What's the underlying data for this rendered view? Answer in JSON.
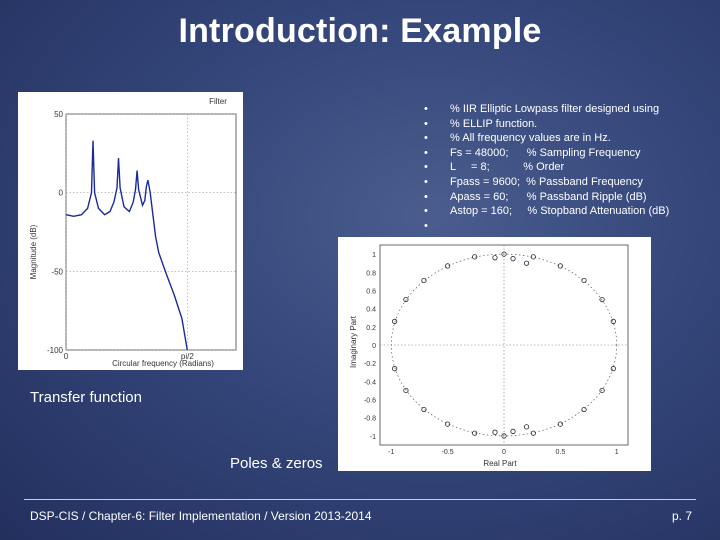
{
  "slide": {
    "title": "Introduction: Example",
    "code_lines": [
      "% IIR Elliptic Lowpass filter designed using",
      "% ELLIP function.",
      "% All frequency values are in Hz.",
      "Fs = 48000;      % Sampling Frequency",
      "L     = 8;           % Order",
      "Fpass = 9600;  % Passband Frequency",
      "Apass = 60;      % Passband Ripple (dB)",
      "Astop = 160;     % Stopband Attenuation (dB)",
      ""
    ],
    "caption_transfer": "Transfer function",
    "caption_poles": "Poles & zeros",
    "footer_text": "DSP-CIS  /  Chapter-6: Filter Implementation  /  Version 2013-2014",
    "page_number": "p. 7"
  },
  "chart_data": [
    {
      "type": "line",
      "title": "Filter",
      "xlabel": "Circular frequency (Radians)",
      "ylabel": "Magnitude (dB)",
      "x_tick_labels": [
        "0",
        "pi/2"
      ],
      "y_tick_labels": [
        "50",
        "0",
        "-50",
        "-100"
      ],
      "xlim": [
        0,
        2.2
      ],
      "ylim": [
        -100,
        50
      ],
      "series": [
        {
          "x": [
            0.0,
            0.1,
            0.2,
            0.28,
            0.33,
            0.35,
            0.37,
            0.42,
            0.5,
            0.57,
            0.62,
            0.66,
            0.68,
            0.7,
            0.75,
            0.82,
            0.87,
            0.9,
            0.92,
            0.94,
            0.99,
            1.02,
            1.04,
            1.06,
            1.09,
            1.12,
            1.16,
            1.2,
            1.3,
            1.4,
            1.5,
            1.57
          ],
          "y": [
            -14,
            -15,
            -14,
            -10,
            0,
            33,
            0,
            -10,
            -14,
            -12,
            -6,
            3,
            22,
            3,
            -9,
            -12,
            -6,
            2,
            14,
            2,
            -8,
            -5,
            4,
            8,
            0,
            -12,
            -28,
            -38,
            -52,
            -65,
            -80,
            -100
          ]
        }
      ]
    },
    {
      "type": "scatter",
      "xlabel": "Real Part",
      "ylabel": "Imaginary Part",
      "x_tick_labels": [
        "-1",
        "-0.5",
        "0",
        "0.5",
        "1"
      ],
      "y_tick_labels": [
        "1",
        "0.8",
        "0.6",
        "0.4",
        "0.2",
        "0",
        "-0.2",
        "-0.4",
        "-0.6",
        "-0.8",
        "-1"
      ],
      "xlim": [
        -1.1,
        1.1
      ],
      "ylim": [
        -1.1,
        1.1
      ],
      "grid": false,
      "series": [
        {
          "name": "",
          "marker": "o",
          "x": [
            0.0,
            0.26,
            0.5,
            0.71,
            0.87,
            0.97,
            -0.26,
            -0.5,
            -0.71,
            -0.87,
            -0.97,
            0.0,
            0.26,
            0.5,
            0.71,
            0.87,
            0.97,
            -0.26,
            -0.5,
            -0.71,
            -0.87,
            -0.97,
            0.08,
            0.2,
            -0.08,
            0.08,
            0.2,
            -0.08
          ],
          "y": [
            1.0,
            0.97,
            0.87,
            0.71,
            0.5,
            0.26,
            0.97,
            0.87,
            0.71,
            0.5,
            0.26,
            -1.0,
            -0.97,
            -0.87,
            -0.71,
            -0.5,
            -0.26,
            -0.97,
            -0.87,
            -0.71,
            -0.5,
            -0.26,
            0.95,
            0.9,
            0.96,
            -0.95,
            -0.9,
            -0.96
          ]
        }
      ]
    }
  ]
}
